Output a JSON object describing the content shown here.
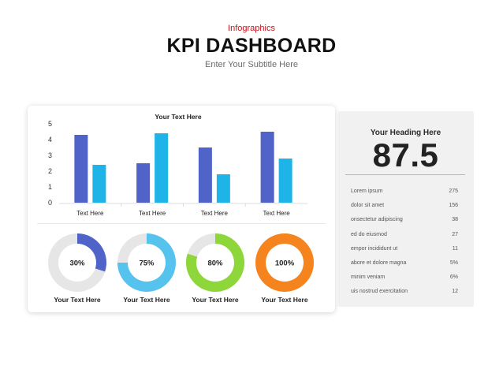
{
  "header": {
    "kicker": "Infographics",
    "title": "KPI DASHBOARD",
    "subtitle": "Enter Your Subtitle Here"
  },
  "colors": {
    "accent_red": "#c0161d",
    "bar_dark": "#4f63c9",
    "bar_light": "#1eb4e8",
    "ring_blue": "#4f63c9",
    "ring_lightblue": "#55c3ee",
    "ring_green": "#8ed73a",
    "ring_orange": "#f5841f",
    "ring_track": "#e6e6e6"
  },
  "chart_data": [
    {
      "type": "bar",
      "title": "Your Text Here",
      "categories": [
        "Text Here",
        "Text Here",
        "Text Here",
        "Text Here"
      ],
      "series": [
        {
          "values": [
            4.3,
            2.5,
            3.5,
            4.5
          ],
          "color": "#4f63c9"
        },
        {
          "values": [
            2.4,
            4.4,
            1.8,
            2.8
          ],
          "color": "#1eb4e8"
        }
      ],
      "ylim": [
        0,
        5
      ],
      "yticks": [
        0,
        1,
        2,
        3,
        4,
        5
      ],
      "grid": false,
      "legend": "none"
    },
    {
      "type": "pie",
      "variant": "donut",
      "items": [
        {
          "label": "Your Text Here",
          "value": 30,
          "text": "30%",
          "color": "#4f63c9"
        },
        {
          "label": "Your Text Here",
          "value": 75,
          "text": "75%",
          "color": "#55c3ee"
        },
        {
          "label": "Your Text Here",
          "value": 80,
          "text": "80%",
          "color": "#8ed73a"
        },
        {
          "label": "Your Text Here",
          "value": 100,
          "text": "100%",
          "color": "#f5841f"
        }
      ]
    }
  ],
  "panel": {
    "heading": "Your Heading Here",
    "value": "87.5",
    "rows": [
      {
        "label": "Lorem ipsum",
        "value": "275"
      },
      {
        "label": "dolor sit amet",
        "value": "156"
      },
      {
        "label": "onsectetur adipiscing",
        "value": "38"
      },
      {
        "label": "ed do eiusmod",
        "value": "27"
      },
      {
        "label": "empor incididunt ut",
        "value": "11"
      },
      {
        "label": "abore et dolore magna",
        "value": "5%"
      },
      {
        "label": "minim veniam",
        "value": "6%"
      },
      {
        "label": "uis nostrud exercitation",
        "value": "12"
      }
    ]
  }
}
